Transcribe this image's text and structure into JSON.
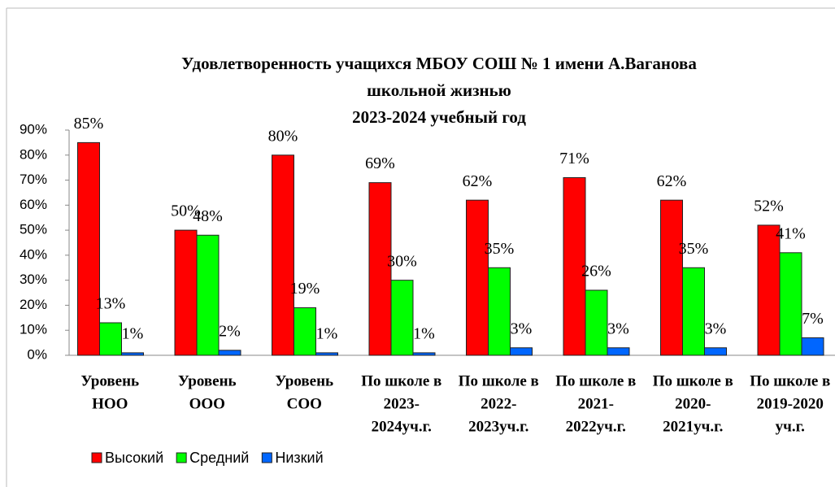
{
  "chart_data": {
    "type": "bar",
    "title": [
      "Удовлетворенность  учащихся   МБОУ СОШ  № 1 имени А.Ваганова",
      "школьной жизнью",
      "2023-2024 учебный год"
    ],
    "categories": [
      [
        "Уровень",
        "НОО"
      ],
      [
        "Уровень",
        "ООО"
      ],
      [
        "Уровень",
        "СОО"
      ],
      [
        "По школе в",
        "2023-",
        "2024уч.г."
      ],
      [
        "По школе в",
        "2022-",
        "2023уч.г."
      ],
      [
        "По школе в",
        "2021-",
        "2022уч.г."
      ],
      [
        "По школе в",
        "2020-",
        "2021уч.г."
      ],
      [
        "По школе в",
        "2019-2020",
        "уч.г."
      ]
    ],
    "series": [
      {
        "name": "Высокий",
        "color": "#ff0000",
        "values": [
          85,
          50,
          80,
          69,
          62,
          71,
          62,
          52
        ],
        "value_labels": [
          "85%",
          "50%",
          "80%",
          "69%",
          "62%",
          "71%",
          "62%",
          "52%"
        ]
      },
      {
        "name": "Средний",
        "color": "#00ff00",
        "values": [
          13,
          48,
          19,
          30,
          35,
          26,
          35,
          41
        ],
        "value_labels": [
          "13%",
          "48%",
          "19%",
          "30%",
          "35%",
          "26%",
          "35%",
          "41%"
        ]
      },
      {
        "name": "Низкий",
        "color": "#0066ff",
        "values": [
          1,
          2,
          1,
          1,
          3,
          3,
          3,
          7
        ],
        "value_labels": [
          "1%",
          "2%",
          "1%",
          "1%",
          "3%",
          "3%",
          "3%",
          "7%"
        ]
      }
    ],
    "ylim": [
      0,
      90
    ],
    "yticks": [
      {
        "value": 0,
        "label": "0%"
      },
      {
        "value": 10,
        "label": "10%"
      },
      {
        "value": 20,
        "label": "20%"
      },
      {
        "value": 30,
        "label": "30%"
      },
      {
        "value": 40,
        "label": "40%"
      },
      {
        "value": 50,
        "label": "50%"
      },
      {
        "value": 60,
        "label": "60%"
      },
      {
        "value": 70,
        "label": "70%"
      },
      {
        "value": 80,
        "label": "80%"
      },
      {
        "value": 90,
        "label": "90%"
      }
    ],
    "legend": "bottom-left"
  }
}
